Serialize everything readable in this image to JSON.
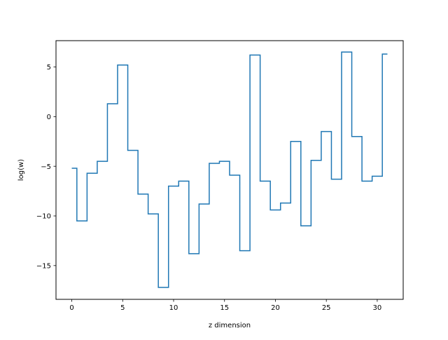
{
  "chart_data": {
    "type": "line",
    "drawstyle": "steps-mid",
    "title": "",
    "xlabel": "z dimension",
    "ylabel": "log(w)",
    "xlim": [
      -1.55,
      32.55
    ],
    "ylim": [
      -18.4,
      7.65
    ],
    "grid": false,
    "legend": "none",
    "xticks": [
      0,
      5,
      10,
      15,
      20,
      25,
      30
    ],
    "yticks": [
      -15,
      -10,
      -5,
      0,
      5
    ],
    "series": [
      {
        "color": "#1f77b4",
        "x": [
          0,
          1,
          2,
          3,
          4,
          5,
          6,
          7,
          8,
          9,
          10,
          11,
          12,
          13,
          14,
          15,
          16,
          17,
          18,
          19,
          20,
          21,
          22,
          23,
          24,
          25,
          26,
          27,
          28,
          29,
          30,
          31
        ],
        "y": [
          -5.2,
          -10.5,
          -5.7,
          -4.5,
          1.3,
          5.2,
          -3.4,
          -7.8,
          -9.8,
          -17.2,
          -7.0,
          -6.5,
          -13.8,
          -8.8,
          -4.7,
          -4.5,
          -5.9,
          -13.5,
          6.2,
          -6.5,
          -9.4,
          -8.7,
          -2.5,
          -11.0,
          -4.4,
          -1.5,
          -6.3,
          6.5,
          -2.0,
          -6.5,
          -6.0,
          6.3
        ]
      }
    ]
  }
}
